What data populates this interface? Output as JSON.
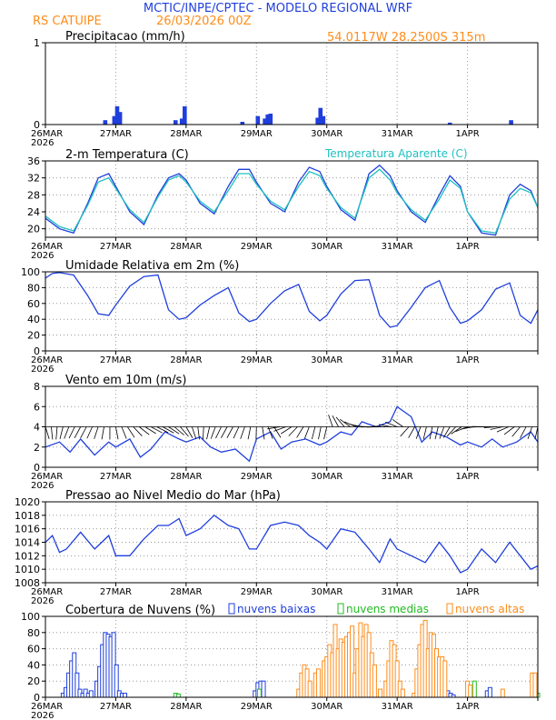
{
  "header": {
    "title": "MCTIC/INPE/CPTEC - MODELO REGIONAL WRF",
    "location": "RS CATUIPE",
    "run": "26/03/2026 00Z",
    "coords": "54.0117W 28.2500S 315m"
  },
  "colors": {
    "blue": "#1f3fdc",
    "cyan": "#20c0c0",
    "orange": "#ff8c1a",
    "green": "#22bb22",
    "black": "#000000",
    "grid": "#9a9a9a"
  },
  "days": [
    "26MAR",
    "27MAR",
    "28MAR",
    "29MAR",
    "30MAR",
    "31MAR",
    "1APR"
  ],
  "year": "2026",
  "chart_data": [
    {
      "type": "bar",
      "title": "Precipitacao (mm/h)",
      "ylim": [
        0,
        1
      ],
      "yticks": [
        0,
        1
      ],
      "x": [
        0.85,
        0.98,
        1.02,
        1.06,
        1.85,
        1.94,
        1.98,
        2.8,
        3.02,
        3.12,
        3.16,
        3.2,
        3.87,
        3.91,
        3.95,
        5.75,
        6.62
      ],
      "values": [
        0.05,
        0.1,
        0.22,
        0.15,
        0.05,
        0.07,
        0.22,
        0.03,
        0.1,
        0.07,
        0.12,
        0.13,
        0.08,
        0.2,
        0.1,
        0.02,
        0.05
      ]
    },
    {
      "type": "line",
      "title": "2-m Temperatura (C)",
      "legend": [
        "Temperatura Aparente (C)"
      ],
      "ylim": [
        18,
        36
      ],
      "yticks": [
        20,
        24,
        28,
        32,
        36
      ],
      "series": [
        {
          "name": "2-m Temperatura",
          "x": [
            0,
            0.2,
            0.4,
            0.6,
            0.75,
            0.9,
            1.0,
            1.2,
            1.4,
            1.6,
            1.75,
            1.9,
            2.0,
            2.2,
            2.4,
            2.6,
            2.75,
            2.9,
            3.0,
            3.2,
            3.4,
            3.6,
            3.75,
            3.9,
            4.0,
            4.2,
            4.4,
            4.6,
            4.75,
            4.9,
            5.0,
            5.2,
            5.4,
            5.6,
            5.75,
            5.9,
            6.0,
            6.2,
            6.4,
            6.6,
            6.75,
            6.9,
            7.0
          ],
          "values": [
            22.5,
            20.0,
            19.0,
            26.0,
            32.0,
            33.0,
            30.0,
            24.0,
            21.0,
            28.0,
            32.0,
            33.0,
            31.5,
            26.0,
            23.5,
            30.0,
            34.0,
            34.0,
            31.0,
            26.0,
            24.0,
            31.0,
            34.5,
            33.5,
            30.0,
            24.5,
            22.0,
            33.0,
            35.0,
            32.5,
            29.0,
            24.0,
            21.5,
            28.0,
            32.5,
            30.0,
            24.0,
            19.0,
            18.5,
            28.0,
            30.5,
            29.0,
            25.0
          ]
        },
        {
          "name": "Temperatura Aparente",
          "x": [
            0,
            0.2,
            0.4,
            0.6,
            0.75,
            0.9,
            1.0,
            1.2,
            1.4,
            1.6,
            1.75,
            1.9,
            2.0,
            2.2,
            2.4,
            2.6,
            2.75,
            2.9,
            3.0,
            3.2,
            3.4,
            3.6,
            3.75,
            3.9,
            4.0,
            4.2,
            4.4,
            4.6,
            4.75,
            4.9,
            5.0,
            5.2,
            5.4,
            5.6,
            5.75,
            5.9,
            6.0,
            6.2,
            6.4,
            6.6,
            6.75,
            6.9,
            7.0
          ],
          "values": [
            23.0,
            20.5,
            19.5,
            25.5,
            31.0,
            32.0,
            29.5,
            24.5,
            21.5,
            27.5,
            31.5,
            32.5,
            31.0,
            26.5,
            24.0,
            29.0,
            33.0,
            33.0,
            30.5,
            26.5,
            24.5,
            30.0,
            33.5,
            32.5,
            29.5,
            25.0,
            22.5,
            32.0,
            34.0,
            31.5,
            28.5,
            24.5,
            22.0,
            27.0,
            31.5,
            29.5,
            24.0,
            19.5,
            19.0,
            27.0,
            29.5,
            28.5,
            25.0
          ]
        }
      ]
    },
    {
      "type": "line",
      "title": "Umidade Relativa em 2m (%)",
      "ylim": [
        0,
        100
      ],
      "yticks": [
        0,
        20,
        40,
        60,
        80,
        100
      ],
      "series": [
        {
          "name": "Umidade Relativa",
          "x": [
            0,
            0.1,
            0.2,
            0.4,
            0.6,
            0.75,
            0.9,
            1.0,
            1.2,
            1.4,
            1.6,
            1.75,
            1.9,
            2.0,
            2.2,
            2.4,
            2.6,
            2.75,
            2.9,
            3.0,
            3.2,
            3.4,
            3.6,
            3.75,
            3.9,
            4.0,
            4.2,
            4.4,
            4.6,
            4.75,
            4.9,
            5.0,
            5.2,
            5.4,
            5.6,
            5.75,
            5.9,
            6.0,
            6.2,
            6.4,
            6.6,
            6.75,
            6.9,
            7.0
          ],
          "values": [
            92,
            98,
            99,
            96,
            70,
            47,
            45,
            58,
            82,
            94,
            96,
            52,
            40,
            42,
            58,
            70,
            80,
            48,
            37,
            40,
            60,
            76,
            84,
            50,
            38,
            45,
            72,
            89,
            90,
            45,
            30,
            32,
            55,
            80,
            89,
            55,
            35,
            38,
            52,
            78,
            86,
            45,
            35,
            52
          ]
        }
      ]
    },
    {
      "type": "line",
      "title": "Vento em 10m (m/s)",
      "ylim": [
        0,
        8
      ],
      "yticks": [
        0,
        2,
        4,
        6,
        8
      ],
      "series": [
        {
          "name": "Vento em 10m",
          "x": [
            0,
            0.2,
            0.35,
            0.5,
            0.7,
            0.9,
            1.0,
            1.2,
            1.35,
            1.5,
            1.7,
            1.9,
            2.0,
            2.2,
            2.35,
            2.5,
            2.7,
            2.9,
            3.0,
            3.2,
            3.35,
            3.5,
            3.7,
            3.9,
            4.0,
            4.2,
            4.35,
            4.5,
            4.7,
            4.9,
            5.0,
            5.2,
            5.35,
            5.5,
            5.7,
            5.9,
            6.0,
            6.2,
            6.35,
            6.5,
            6.7,
            6.9,
            7.0
          ],
          "values": [
            2.0,
            2.5,
            1.5,
            2.8,
            1.2,
            2.5,
            2.0,
            2.8,
            1.0,
            1.8,
            3.5,
            2.8,
            2.5,
            3.0,
            2.0,
            1.5,
            1.8,
            0.6,
            2.8,
            3.5,
            1.8,
            2.5,
            2.8,
            2.2,
            2.5,
            3.5,
            3.2,
            4.5,
            4.0,
            4.5,
            6.0,
            5.0,
            2.5,
            3.5,
            3.0,
            2.2,
            2.5,
            2.0,
            2.8,
            2.0,
            2.5,
            3.5,
            2.5
          ]
        }
      ]
    },
    {
      "type": "line",
      "title": "Pressao ao Nivel Medio do Mar (hPa)",
      "ylim": [
        1008,
        1020
      ],
      "yticks": [
        1008,
        1010,
        1012,
        1014,
        1016,
        1018,
        1020
      ],
      "series": [
        {
          "name": "Pressao",
          "x": [
            0,
            0.1,
            0.2,
            0.3,
            0.5,
            0.7,
            0.9,
            1.0,
            1.2,
            1.4,
            1.6,
            1.75,
            1.9,
            2.0,
            2.2,
            2.4,
            2.6,
            2.75,
            2.9,
            3.0,
            3.2,
            3.4,
            3.6,
            3.75,
            3.9,
            4.0,
            4.2,
            4.4,
            4.6,
            4.75,
            4.9,
            5.0,
            5.2,
            5.4,
            5.6,
            5.75,
            5.9,
            6.0,
            6.2,
            6.4,
            6.6,
            6.75,
            6.9,
            7.0
          ],
          "values": [
            1014.0,
            1015.0,
            1012.5,
            1013.0,
            1015.5,
            1013.0,
            1015.0,
            1012.0,
            1012.0,
            1014.5,
            1016.5,
            1016.5,
            1017.5,
            1015.0,
            1016.0,
            1018.0,
            1016.5,
            1016.0,
            1013.0,
            1013.0,
            1016.5,
            1017.0,
            1016.5,
            1015.0,
            1014.0,
            1013.0,
            1016.0,
            1015.5,
            1013.0,
            1011.0,
            1014.5,
            1013.0,
            1012.0,
            1011.0,
            1014.0,
            1012.0,
            1009.5,
            1010.0,
            1013.0,
            1011.0,
            1014.0,
            1012.0,
            1010.0,
            1010.5
          ]
        }
      ]
    },
    {
      "type": "bar",
      "title": "Cobertura de Nuvens (%)",
      "legend": [
        "nuvens baixas",
        "nuvens medias",
        "nuvens altas"
      ],
      "ylim": [
        0,
        100
      ],
      "yticks": [
        0,
        20,
        40,
        60,
        80,
        100
      ],
      "series": [
        {
          "name": "nuvens baixas",
          "x": [
            0.25,
            0.29,
            0.33,
            0.37,
            0.41,
            0.45,
            0.49,
            0.53,
            0.57,
            0.61,
            0.65,
            0.73,
            0.77,
            0.81,
            0.85,
            0.89,
            0.93,
            0.97,
            1.01,
            1.05,
            1.09,
            1.13,
            2.98,
            3.02,
            3.06,
            3.1,
            4.0,
            4.04,
            4.08,
            5.72,
            5.76,
            5.8,
            6.28,
            6.32
          ],
          "values": [
            5,
            12,
            30,
            45,
            55,
            30,
            10,
            5,
            10,
            5,
            8,
            20,
            38,
            65,
            80,
            78,
            75,
            80,
            40,
            8,
            5,
            5,
            8,
            18,
            20,
            20,
            38,
            45,
            20,
            8,
            5,
            3,
            8,
            12
          ]
        },
        {
          "name": "nuvens medias",
          "x": [
            1.85,
            1.89,
            3.04,
            5.5,
            6.1,
            7.0
          ],
          "values": [
            5,
            4,
            10,
            15,
            20,
            5
          ]
        },
        {
          "name": "nuvens altas",
          "x": [
            3.6,
            3.64,
            3.68,
            3.72,
            3.76,
            3.84,
            3.88,
            3.96,
            4.0,
            4.04,
            4.08,
            4.12,
            4.16,
            4.2,
            4.24,
            4.28,
            4.32,
            4.36,
            4.4,
            4.44,
            4.48,
            4.52,
            4.56,
            4.6,
            4.64,
            4.68,
            4.76,
            4.84,
            4.88,
            4.92,
            4.96,
            5.0,
            5.04,
            5.08,
            5.24,
            5.28,
            5.32,
            5.36,
            5.4,
            5.44,
            5.48,
            5.52,
            5.56,
            5.6,
            5.64,
            5.68,
            6.0,
            6.04,
            6.5,
            6.92,
            6.96
          ],
          "values": [
            10,
            30,
            40,
            35,
            20,
            30,
            35,
            45,
            50,
            65,
            55,
            90,
            60,
            72,
            68,
            75,
            80,
            88,
            30,
            60,
            92,
            75,
            90,
            80,
            55,
            40,
            10,
            20,
            45,
            70,
            65,
            45,
            20,
            10,
            5,
            35,
            65,
            90,
            95,
            60,
            80,
            78,
            60,
            50,
            50,
            45,
            20,
            15,
            10,
            30,
            30
          ]
        }
      ]
    }
  ]
}
